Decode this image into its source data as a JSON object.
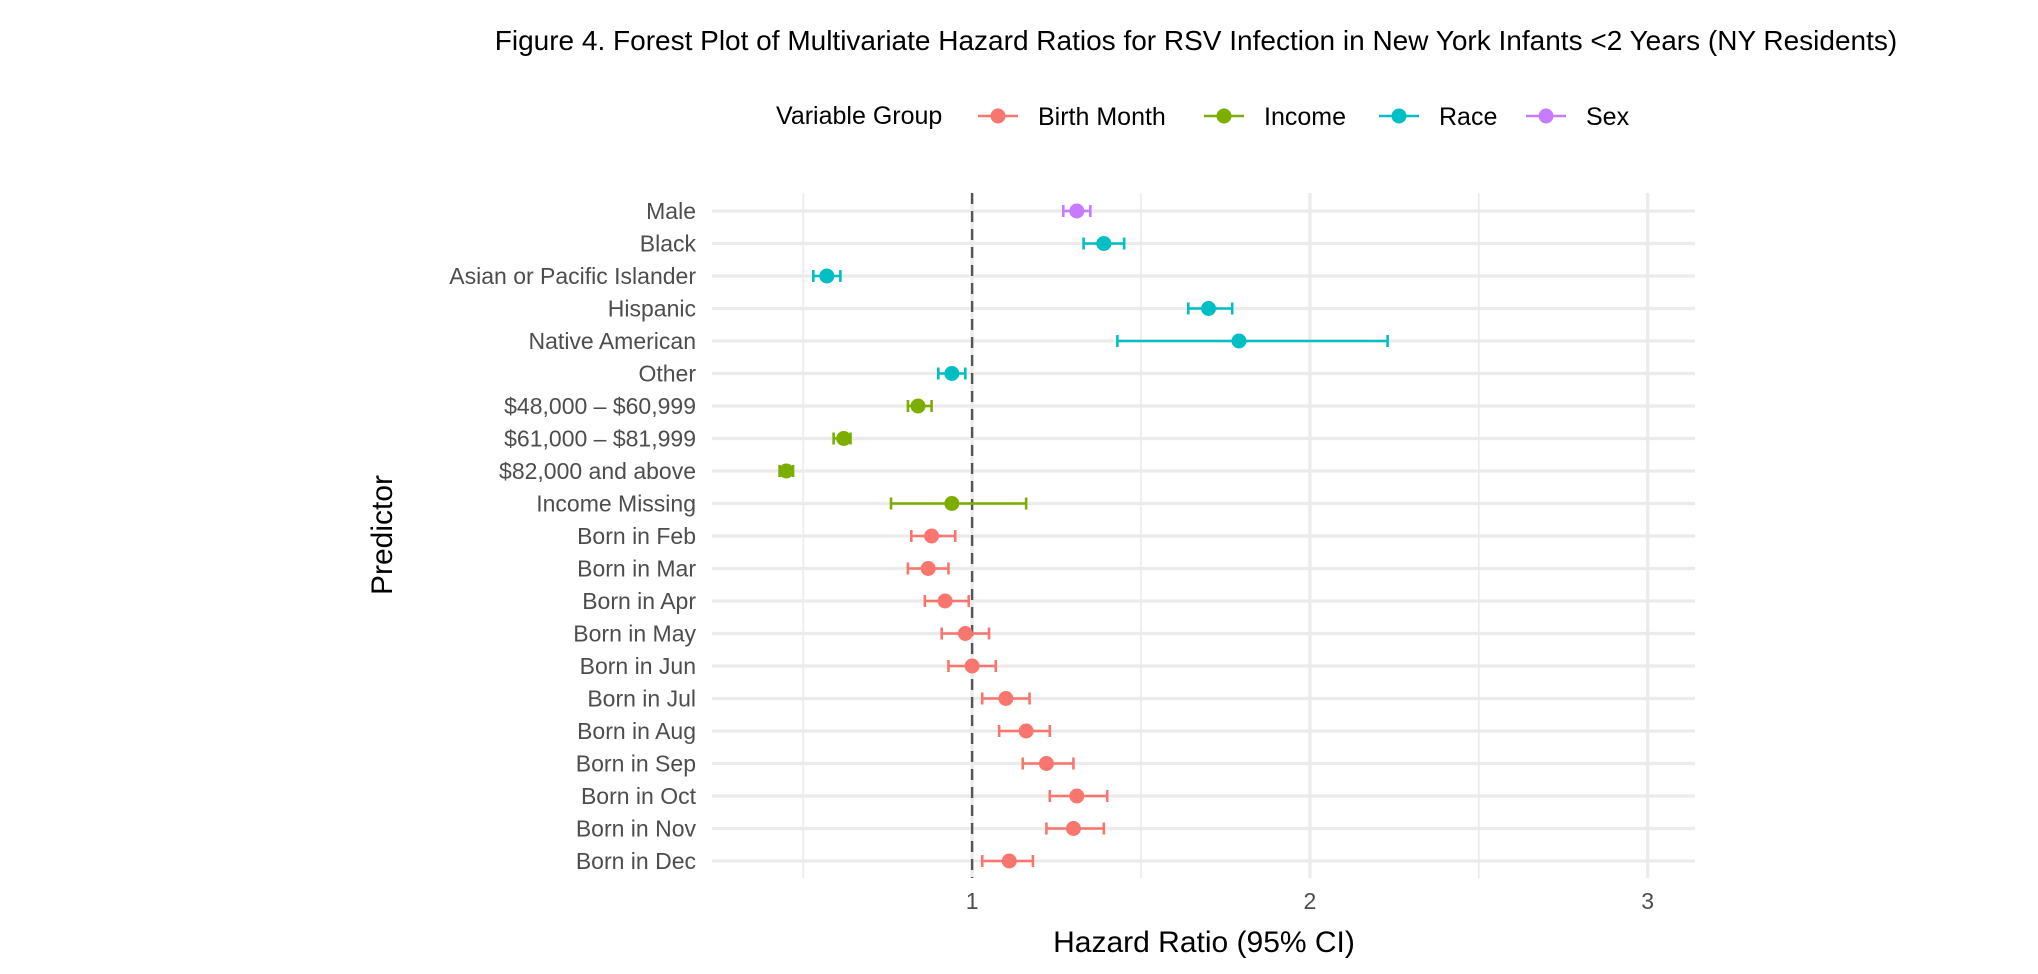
{
  "chart_data": {
    "type": "forest",
    "title": "Figure 4. Forest Plot of Multivariate Hazard Ratios for RSV Infection in New York Infants <2 Years (NY Residents)",
    "xlabel": "Hazard Ratio (95% CI)",
    "ylabel": "Predictor",
    "xlim": [
      0.23,
      3.14
    ],
    "x_ticks": [
      1,
      2,
      3
    ],
    "x_minor_ticks": [
      0.5,
      1.5,
      2.5
    ],
    "reference_line": 1,
    "grid": true,
    "legend": {
      "title": "Variable Group",
      "placement": "top",
      "entries": [
        {
          "name": "Birth Month",
          "color": "#F8766D"
        },
        {
          "name": "Income",
          "color": "#7CAE00"
        },
        {
          "name": "Race",
          "color": "#00BFC4"
        },
        {
          "name": "Sex",
          "color": "#C77CFF"
        }
      ]
    },
    "rows": [
      {
        "label": "Male",
        "group": "Sex",
        "hr": 1.31,
        "lower": 1.27,
        "upper": 1.35
      },
      {
        "label": "Black",
        "group": "Race",
        "hr": 1.39,
        "lower": 1.33,
        "upper": 1.45
      },
      {
        "label": "Asian or Pacific Islander",
        "group": "Race",
        "hr": 0.57,
        "lower": 0.53,
        "upper": 0.61
      },
      {
        "label": "Hispanic",
        "group": "Race",
        "hr": 1.7,
        "lower": 1.64,
        "upper": 1.77
      },
      {
        "label": "Native American",
        "group": "Race",
        "hr": 1.79,
        "lower": 1.43,
        "upper": 2.23
      },
      {
        "label": "Other",
        "group": "Race",
        "hr": 0.94,
        "lower": 0.9,
        "upper": 0.98
      },
      {
        "label": "$48,000 – $60,999",
        "group": "Income",
        "hr": 0.84,
        "lower": 0.81,
        "upper": 0.88
      },
      {
        "label": "$61,000 – $81,999",
        "group": "Income",
        "hr": 0.62,
        "lower": 0.59,
        "upper": 0.64
      },
      {
        "label": "$82,000 and above",
        "group": "Income",
        "hr": 0.45,
        "lower": 0.43,
        "upper": 0.47
      },
      {
        "label": "Income Missing",
        "group": "Income",
        "hr": 0.94,
        "lower": 0.76,
        "upper": 1.16
      },
      {
        "label": "Born in Feb",
        "group": "Birth Month",
        "hr": 0.88,
        "lower": 0.82,
        "upper": 0.95
      },
      {
        "label": "Born in Mar",
        "group": "Birth Month",
        "hr": 0.87,
        "lower": 0.81,
        "upper": 0.93
      },
      {
        "label": "Born in Apr",
        "group": "Birth Month",
        "hr": 0.92,
        "lower": 0.86,
        "upper": 0.99
      },
      {
        "label": "Born in May",
        "group": "Birth Month",
        "hr": 0.98,
        "lower": 0.91,
        "upper": 1.05
      },
      {
        "label": "Born in Jun",
        "group": "Birth Month",
        "hr": 1.0,
        "lower": 0.93,
        "upper": 1.07
      },
      {
        "label": "Born in Jul",
        "group": "Birth Month",
        "hr": 1.1,
        "lower": 1.03,
        "upper": 1.17
      },
      {
        "label": "Born in Aug",
        "group": "Birth Month",
        "hr": 1.16,
        "lower": 1.08,
        "upper": 1.23
      },
      {
        "label": "Born in Sep",
        "group": "Birth Month",
        "hr": 1.22,
        "lower": 1.15,
        "upper": 1.3
      },
      {
        "label": "Born in Oct",
        "group": "Birth Month",
        "hr": 1.31,
        "lower": 1.23,
        "upper": 1.4
      },
      {
        "label": "Born in Nov",
        "group": "Birth Month",
        "hr": 1.3,
        "lower": 1.22,
        "upper": 1.39
      },
      {
        "label": "Born in Dec",
        "group": "Birth Month",
        "hr": 1.11,
        "lower": 1.03,
        "upper": 1.18
      }
    ]
  }
}
